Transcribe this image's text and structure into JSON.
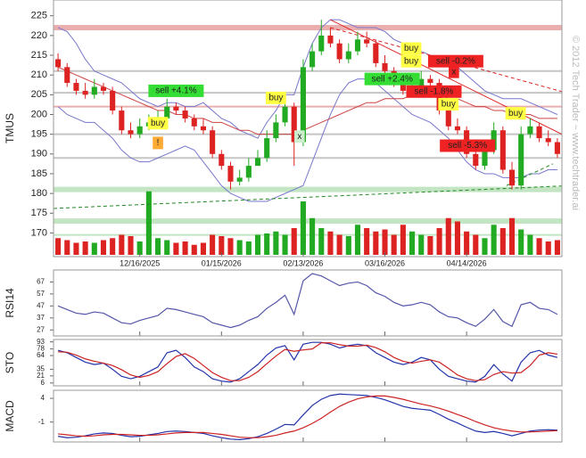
{
  "chart_data": [
    {
      "type": "candlestick",
      "y_label": "TMUS",
      "xlim": [
        -0.5,
        55.5
      ],
      "xticks": [
        {
          "value": 9,
          "label": "12/16/2025"
        },
        {
          "value": 18,
          "label": "01/15/2026"
        },
        {
          "value": 27,
          "label": "02/13/2026"
        },
        {
          "value": 36,
          "label": "03/16/2026"
        },
        {
          "value": 45,
          "label": "04/14/2026"
        }
      ],
      "ylim": [
        164,
        229
      ],
      "yticks": [
        170,
        175,
        180,
        185,
        190,
        195,
        200,
        205,
        210,
        215,
        220,
        225
      ],
      "up_color": "#22aa22",
      "down_color": "#dd2222",
      "open": [
        214,
        212,
        208,
        206,
        205,
        207,
        206,
        201,
        196,
        195,
        197,
        198,
        199,
        202,
        201,
        199,
        197,
        196,
        190,
        187,
        183,
        184,
        187,
        189,
        194,
        198,
        202,
        193,
        212,
        216,
        220,
        218,
        214,
        216,
        219,
        218,
        213,
        211,
        208,
        206,
        207,
        209,
        208,
        201,
        197,
        196,
        190,
        187,
        191,
        196,
        186,
        182,
        195,
        197,
        194,
        193
      ],
      "high": [
        215.5,
        213,
        209,
        208,
        209,
        208,
        207,
        202,
        198,
        199,
        200,
        201,
        204,
        203,
        202,
        200,
        199,
        197,
        191,
        188,
        186,
        189,
        191,
        196,
        200,
        205,
        203,
        214,
        218,
        224,
        222,
        219,
        218,
        221,
        221,
        219,
        215,
        212,
        210,
        209,
        211,
        210,
        209,
        203,
        199,
        197,
        192,
        193,
        198,
        197,
        188,
        197,
        199,
        198,
        196,
        194
      ],
      "low": [
        211,
        207,
        205,
        204,
        204,
        205,
        200,
        195,
        194,
        194,
        196,
        197,
        198,
        200,
        198,
        196,
        195,
        189,
        186,
        181,
        182,
        183,
        187,
        188,
        193,
        197,
        187,
        192,
        211,
        215,
        217,
        213,
        213,
        215,
        217,
        212,
        210,
        207,
        205,
        205,
        206,
        207,
        200,
        196,
        195,
        189,
        186,
        186,
        190,
        185,
        181,
        181,
        194,
        193,
        192,
        189
      ],
      "close": [
        212,
        208,
        206,
        205,
        207,
        206,
        201,
        196,
        195,
        197,
        198,
        199,
        202,
        201,
        199,
        197,
        196,
        190,
        187,
        183,
        184,
        187,
        189,
        194,
        198,
        202,
        193,
        212,
        216,
        220,
        218,
        214,
        216,
        219,
        218,
        213,
        211,
        208,
        206,
        207,
        209,
        208,
        201,
        197,
        196,
        190,
        187,
        191,
        196,
        186,
        182,
        195,
        197,
        194,
        193,
        190
      ],
      "volume": [
        25,
        22,
        18,
        20,
        18,
        22,
        25,
        30,
        28,
        20,
        95,
        25,
        22,
        18,
        20,
        15,
        18,
        30,
        28,
        25,
        22,
        20,
        30,
        32,
        35,
        30,
        40,
        80,
        55,
        40,
        35,
        30,
        28,
        45,
        40,
        35,
        38,
        30,
        45,
        35,
        30,
        28,
        40,
        55,
        50,
        35,
        30,
        25,
        45,
        40,
        55,
        38,
        30,
        25,
        20,
        22
      ],
      "vlim": [
        0,
        100
      ],
      "overlays": [
        {
          "color": "#7777cc",
          "values": [
            222,
            221,
            218,
            214,
            211,
            210,
            209,
            208,
            206,
            204,
            203,
            202,
            203,
            203,
            202,
            202,
            203,
            201,
            199,
            198,
            196,
            195,
            194,
            198,
            201,
            205,
            205,
            212,
            218,
            222,
            224,
            224,
            223,
            222,
            222,
            222,
            221,
            219,
            218,
            217,
            216,
            215,
            214,
            213,
            212,
            210,
            208,
            206,
            205,
            204,
            204,
            204,
            203,
            202,
            201,
            200
          ]
        },
        {
          "color": "#7777cc",
          "values": [
            202,
            200,
            199,
            198,
            198,
            196,
            194,
            191,
            189,
            188,
            188,
            189,
            190,
            191,
            192,
            191,
            188,
            185,
            182,
            180,
            179,
            178,
            178,
            178,
            179,
            180,
            181,
            182,
            188,
            194,
            200,
            205,
            208,
            209,
            209,
            208,
            206,
            204,
            202,
            200,
            199,
            198,
            196,
            194,
            191,
            188,
            186,
            185,
            185,
            184,
            184,
            184,
            185,
            185,
            186,
            186
          ]
        },
        {
          "color": "#cc4444",
          "values": [
            212,
            211,
            210,
            209,
            208,
            207,
            206,
            205,
            204,
            203,
            202,
            201,
            201,
            200,
            200,
            199,
            199,
            198,
            198,
            197,
            196,
            196,
            195,
            195,
            195,
            195,
            195,
            196,
            197,
            198,
            199,
            200,
            201,
            202,
            203,
            203,
            204,
            204,
            204,
            205,
            205,
            205,
            205,
            204,
            204,
            203,
            202,
            202,
            201,
            201,
            200,
            200,
            200,
            199,
            199,
            199
          ]
        }
      ],
      "levels": [
        {
          "value": 222,
          "color": "#e8a0a0",
          "band": true
        },
        {
          "value": 211,
          "color": "#bbbbbb",
          "band": false
        },
        {
          "value": 205.5,
          "color": "#bbbbbb",
          "band": false
        },
        {
          "value": 202,
          "color": "#e8a0a0",
          "band": false
        },
        {
          "value": 195,
          "color": "#bbbbbb",
          "band": false
        },
        {
          "value": 189,
          "color": "#bbbbbb",
          "band": false
        },
        {
          "value": 181,
          "color": "#b8e0b8",
          "band": true
        },
        {
          "value": 173,
          "color": "#b8e0b8",
          "band": true
        },
        {
          "value": 169.5,
          "color": "#b8e0b8",
          "band": false
        }
      ],
      "trendlines": [
        {
          "x": [
            30,
            55.5
          ],
          "y": [
            224,
            195
          ],
          "color": "#dd2222",
          "dash": false
        },
        {
          "x": [
            30,
            55.5
          ],
          "y": [
            222,
            205.8
          ],
          "color": "#dd2222",
          "dash": true
        },
        {
          "x": [
            -0.5,
            55.5
          ],
          "y": [
            176.2,
            181.9
          ],
          "color": "#228822",
          "dash": true
        },
        {
          "x": [
            49.4,
            54.5
          ],
          "y": [
            182,
            187.5
          ],
          "color": "#228822",
          "dash": true
        }
      ],
      "signals": [
        {
          "label": "buy",
          "x": 11,
          "y": 197.8,
          "color": "#ffff44"
        },
        {
          "label": "!",
          "x": 11,
          "y": 192.8,
          "color": "#ffaa33"
        },
        {
          "label": "sell +4.1%",
          "x": 13,
          "y": 206,
          "color": "#33dd33"
        },
        {
          "label": "buy",
          "x": 24,
          "y": 204.2,
          "color": "#ffff44"
        },
        {
          "label": "x",
          "x": 26.6,
          "y": 194.4,
          "color": "#cceecc"
        },
        {
          "label": "buy",
          "x": 38.9,
          "y": 216.7,
          "color": "#ffff44"
        },
        {
          "label": "buy",
          "x": 38.9,
          "y": 213.5,
          "color": "#ffff44"
        },
        {
          "label": "sell -0.2%",
          "x": 43.8,
          "y": 213.5,
          "color": "#ee2222"
        },
        {
          "label": "x",
          "x": 43.6,
          "y": 210.8,
          "color": "#ee2222"
        },
        {
          "label": "sell +2.4%",
          "x": 36.8,
          "y": 209,
          "color": "#33dd33"
        },
        {
          "label": "sell -1.8%",
          "x": 41.4,
          "y": 205.8,
          "color": "#ee2222"
        },
        {
          "label": "buy",
          "x": 43,
          "y": 202.6,
          "color": "#ffff44"
        },
        {
          "label": "sell -5.3%",
          "x": 45.1,
          "y": 192.1,
          "color": "#ee2222"
        },
        {
          "label": "buy",
          "x": 50.4,
          "y": 200.3,
          "color": "#ffff44"
        }
      ]
    },
    {
      "type": "line",
      "y_label": "RSI14",
      "ylim": [
        22,
        77
      ],
      "yticks": [
        27,
        37,
        47,
        57,
        67
      ],
      "series": [
        {
          "color": "#5555aa",
          "values": [
            47,
            44,
            41,
            40,
            42,
            41,
            37,
            33,
            32,
            35,
            37,
            39,
            45,
            44,
            42,
            40,
            38,
            33,
            31,
            29,
            31,
            35,
            38,
            45,
            50,
            56,
            40,
            68,
            74,
            72,
            68,
            64,
            66,
            67,
            64,
            58,
            55,
            50,
            47,
            48,
            50,
            48,
            42,
            38,
            37,
            33,
            30,
            36,
            44,
            34,
            30,
            48,
            50,
            45,
            44,
            40
          ]
        }
      ]
    },
    {
      "type": "line",
      "y_label": "STO",
      "ylim": [
        0,
        98
      ],
      "yticks": [
        6,
        21,
        35,
        64,
        78,
        93
      ],
      "series": [
        {
          "color": "#2233aa",
          "values": [
            75,
            70,
            60,
            50,
            45,
            48,
            35,
            20,
            15,
            20,
            30,
            40,
            70,
            75,
            60,
            40,
            30,
            15,
            10,
            8,
            15,
            30,
            45,
            65,
            80,
            85,
            55,
            88,
            92,
            92,
            88,
            80,
            85,
            88,
            85,
            70,
            60,
            50,
            45,
            50,
            60,
            55,
            35,
            20,
            15,
            10,
            8,
            20,
            45,
            25,
            10,
            50,
            70,
            75,
            65,
            60
          ]
        },
        {
          "color": "#cc2222",
          "values": [
            72,
            71,
            65,
            57,
            52,
            48,
            43,
            34,
            23,
            18,
            22,
            30,
            47,
            62,
            68,
            58,
            43,
            28,
            18,
            11,
            11,
            18,
            30,
            47,
            63,
            77,
            73,
            76,
            78,
            91,
            91,
            87,
            84,
            84,
            86,
            81,
            72,
            60,
            52,
            48,
            52,
            55,
            50,
            37,
            23,
            15,
            11,
            13,
            24,
            30,
            27,
            28,
            43,
            65,
            70,
            67
          ]
        }
      ]
    },
    {
      "type": "line",
      "y_label": "MACD",
      "ylim": [
        -5.2,
        5.7
      ],
      "yticks": [
        -1,
        4
      ],
      "series": [
        {
          "color": "#2233aa",
          "values": [
            -4.0,
            -4.3,
            -4.2,
            -3.9,
            -3.5,
            -3.3,
            -3.4,
            -3.8,
            -4.1,
            -4.0,
            -3.7,
            -3.4,
            -3.0,
            -2.9,
            -3.0,
            -3.2,
            -3.4,
            -3.9,
            -4.3,
            -4.6,
            -4.7,
            -4.5,
            -4.1,
            -3.4,
            -2.5,
            -1.5,
            -1.6,
            0.5,
            2.5,
            3.8,
            4.6,
            4.9,
            4.8,
            4.7,
            4.6,
            4.2,
            3.7,
            3.0,
            2.3,
            1.9,
            1.7,
            1.5,
            0.6,
            -0.4,
            -1.2,
            -2.1,
            -2.9,
            -3.2,
            -3.0,
            -3.4,
            -3.9,
            -3.4,
            -2.9,
            -2.7,
            -2.6,
            -2.7
          ]
        },
        {
          "color": "#cc2222",
          "values": [
            -3.5,
            -3.7,
            -3.9,
            -4.0,
            -3.9,
            -3.7,
            -3.6,
            -3.6,
            -3.7,
            -3.8,
            -3.8,
            -3.7,
            -3.5,
            -3.3,
            -3.2,
            -3.2,
            -3.2,
            -3.4,
            -3.6,
            -3.9,
            -4.2,
            -4.3,
            -4.3,
            -4.1,
            -3.8,
            -3.3,
            -2.9,
            -2.2,
            -1.3,
            -0.2,
            1.1,
            2.3,
            3.2,
            3.9,
            4.3,
            4.5,
            4.5,
            4.2,
            3.8,
            3.3,
            2.8,
            2.4,
            1.9,
            1.3,
            0.6,
            -0.1,
            -0.9,
            -1.6,
            -2.2,
            -2.6,
            -2.9,
            -3.1,
            -3.1,
            -3.0,
            -2.9,
            -2.8
          ]
        }
      ]
    }
  ],
  "copyright": "© 2012 Tech Trader ~ www.techtrader.ai"
}
